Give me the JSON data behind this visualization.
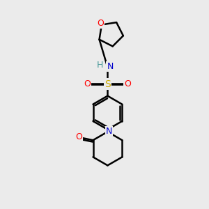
{
  "background_color": "#ebebeb",
  "atom_colors": {
    "C": "#000000",
    "N": "#0000cc",
    "O": "#ff0000",
    "S": "#ccaa00",
    "H": "#4a9999"
  },
  "bond_color": "#000000",
  "bond_width": 1.8,
  "figsize": [
    3.0,
    3.0
  ],
  "dpi": 100
}
